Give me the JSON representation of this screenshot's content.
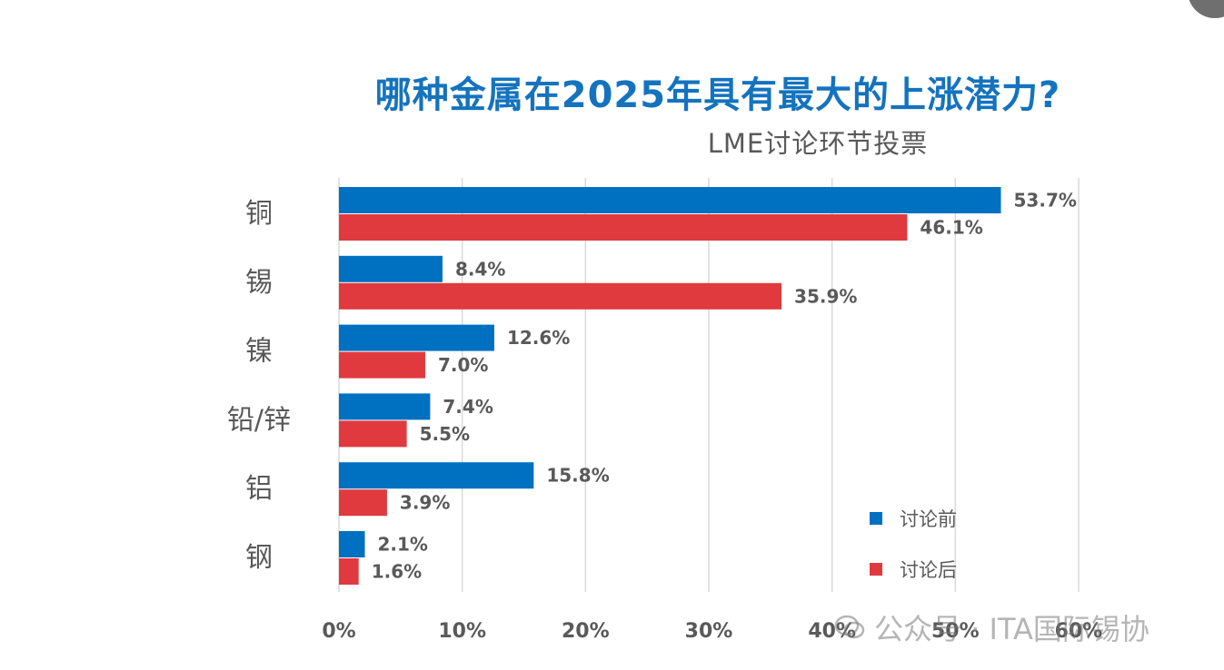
{
  "chart_data": {
    "type": "bar",
    "orientation": "horizontal",
    "title": "哪种金属在2025年具有最大的上涨潜力?",
    "subtitle": "LME讨论环节投票",
    "categories": [
      "铜",
      "锡",
      "镍",
      "铅/锌",
      "铝",
      "钢"
    ],
    "series": [
      {
        "name": "讨论前",
        "color": "#0070c0",
        "values": [
          53.7,
          8.4,
          12.6,
          7.4,
          15.8,
          2.1
        ]
      },
      {
        "name": "讨论后",
        "color": "#e03a3e",
        "values": [
          46.1,
          35.9,
          7.0,
          5.5,
          3.9,
          1.6
        ]
      }
    ],
    "data_labels": [
      [
        "53.7%",
        "8.4%",
        "12.6%",
        "7.4%",
        "15.8%",
        "2.1%"
      ],
      [
        "46.1%",
        "35.9%",
        "7.0%",
        "5.5%",
        "3.9%",
        "1.6%"
      ]
    ],
    "xlim": [
      0,
      60
    ],
    "x_ticks": [
      0,
      10,
      20,
      30,
      40,
      50,
      60
    ],
    "x_tick_labels": [
      "0%",
      "10%",
      "20%",
      "30%",
      "40%",
      "50%",
      "60%"
    ],
    "grid": "vertical",
    "legend_position": "bottom-right"
  },
  "watermark": "公众号 · ITA国际锡协",
  "icons": {
    "corner": "scroll-button-icon",
    "watermark": "wechat-icon"
  }
}
